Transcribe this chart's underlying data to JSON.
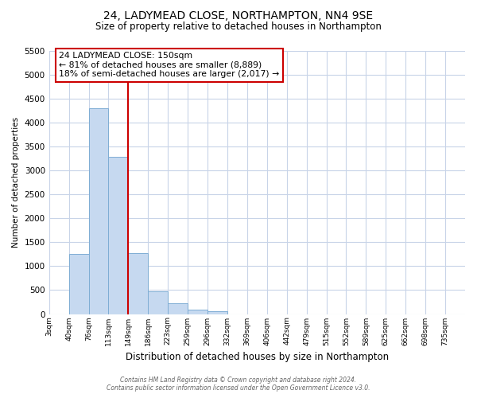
{
  "title": "24, LADYMEAD CLOSE, NORTHAMPTON, NN4 9SE",
  "subtitle": "Size of property relative to detached houses in Northampton",
  "xlabel": "Distribution of detached houses by size in Northampton",
  "ylabel": "Number of detached properties",
  "bar_color": "#c6d9f0",
  "bar_edge_color": "#7eadd4",
  "vline_color": "#cc0000",
  "vline_x": 4,
  "annotation_title": "24 LADYMEAD CLOSE: 150sqm",
  "annotation_line1": "← 81% of detached houses are smaller (8,889)",
  "annotation_line2": "18% of semi-detached houses are larger (2,017) →",
  "categories": [
    "3sqm",
    "40sqm",
    "76sqm",
    "113sqm",
    "149sqm",
    "186sqm",
    "223sqm",
    "259sqm",
    "296sqm",
    "332sqm",
    "369sqm",
    "406sqm",
    "442sqm",
    "479sqm",
    "515sqm",
    "552sqm",
    "589sqm",
    "625sqm",
    "662sqm",
    "698sqm",
    "735sqm"
  ],
  "values": [
    0,
    1250,
    4300,
    3280,
    1280,
    470,
    220,
    95,
    65,
    0,
    0,
    0,
    0,
    0,
    0,
    0,
    0,
    0,
    0,
    0,
    0
  ],
  "ylim": [
    0,
    5500
  ],
  "yticks": [
    0,
    500,
    1000,
    1500,
    2000,
    2500,
    3000,
    3500,
    4000,
    4500,
    5000,
    5500
  ],
  "footer1": "Contains HM Land Registry data © Crown copyright and database right 2024.",
  "footer2": "Contains public sector information licensed under the Open Government Licence v3.0.",
  "background_color": "#ffffff",
  "grid_color": "#c8d4e8"
}
